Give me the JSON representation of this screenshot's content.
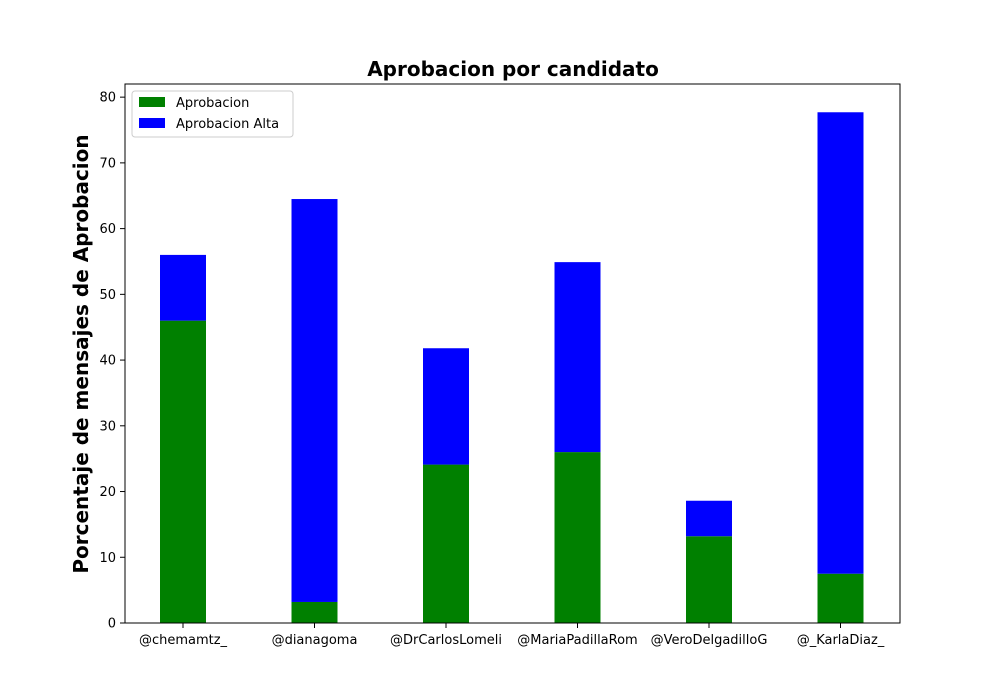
{
  "chart_data": {
    "type": "bar",
    "stacked": true,
    "title": "Aprobacion por candidato",
    "xlabel": "",
    "ylabel": "Porcentaje de mensajes de Aprobacion",
    "ylim": [
      0,
      82
    ],
    "yticks": [
      0,
      10,
      20,
      30,
      40,
      50,
      60,
      70,
      80
    ],
    "grid": false,
    "legend_position": "top-left",
    "categories": [
      "@chemamtz_",
      "@dianagoma",
      "@DrCarlosLomeli",
      "@MariaPadillaRom",
      "@VeroDelgadilloG",
      "@_KarlaDiaz_"
    ],
    "series": [
      {
        "name": "Aprobacion",
        "color": "#008000",
        "values": [
          46.0,
          3.2,
          24.1,
          26.0,
          13.2,
          7.5
        ]
      },
      {
        "name": "Aprobacion Alta",
        "color": "#0000ff",
        "values": [
          10.0,
          61.3,
          17.7,
          28.9,
          5.4,
          70.2
        ]
      }
    ]
  }
}
